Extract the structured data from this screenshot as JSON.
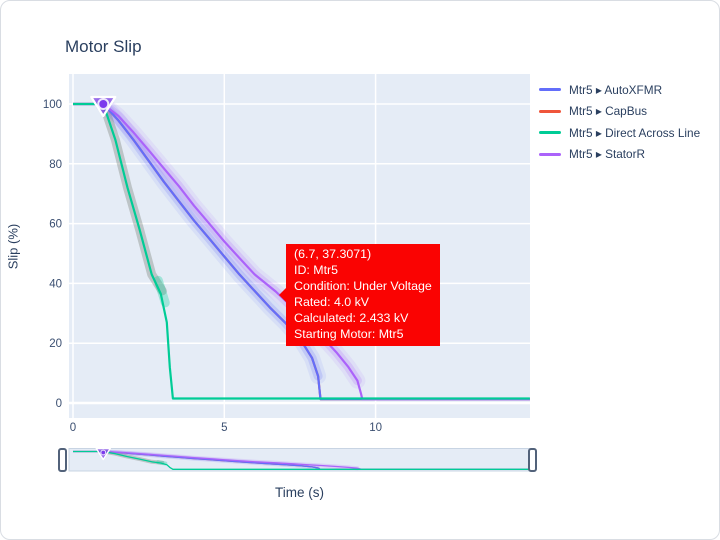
{
  "title": "Motor Slip",
  "axes": {
    "ylabel": "Slip (%)",
    "xlabel": "Time (s)"
  },
  "legend": {
    "items": [
      {
        "label": "Mtr5 ▸ AutoXFMR",
        "color": "#636efa"
      },
      {
        "label": "Mtr5 ▸ CapBus",
        "color": "#ef553b"
      },
      {
        "label": "Mtr5 ▸ Direct Across Line",
        "color": "#00cc96"
      },
      {
        "label": "Mtr5 ▸ StatorR",
        "color": "#ab63fa"
      }
    ]
  },
  "tooltip": {
    "point": "(6.7, 37.3071)",
    "id": "ID: Mtr5",
    "condition": "Condition: Under Voltage",
    "rated": "Rated: 4.0 kV",
    "calculated": "Calculated: 2.433 kV",
    "starting_motor": "Starting Motor: Mtr5",
    "bg_color": "#fa0302"
  },
  "chart_data": {
    "type": "line",
    "title": "Motor Slip",
    "xlabel": "Time (s)",
    "ylabel": "Slip (%)",
    "xlim": [
      0,
      15.1
    ],
    "ylim": [
      -5,
      110
    ],
    "xticks": [
      0,
      5,
      10
    ],
    "yticks": [
      0,
      20,
      40,
      60,
      80,
      100
    ],
    "grid": true,
    "plot_bg": "#e5ecf6",
    "grid_color": "#ffffff",
    "legend_position": "right",
    "has_rangeslider": true,
    "series": [
      {
        "name": "Mtr5 ▸ AutoXFMR",
        "color": "#636efa",
        "points": [
          [
            0,
            100
          ],
          [
            1,
            100
          ],
          [
            1.5,
            94.5
          ],
          [
            2,
            88
          ],
          [
            2.5,
            81
          ],
          [
            3,
            74
          ],
          [
            3.5,
            67.5
          ],
          [
            4,
            61
          ],
          [
            4.5,
            55
          ],
          [
            5,
            49
          ],
          [
            5.5,
            43
          ],
          [
            6,
            37.5
          ],
          [
            6.5,
            32
          ],
          [
            7,
            27
          ],
          [
            7.5,
            21.5
          ],
          [
            7.9,
            15
          ],
          [
            8.1,
            9
          ],
          [
            8.18,
            1.3
          ],
          [
            15.1,
            1.3
          ]
        ]
      },
      {
        "name": "Mtr5 ▸ CapBus",
        "color": "#ef553b",
        "points": [
          [
            0,
            100
          ],
          [
            1,
            100
          ],
          [
            1.5,
            94.5
          ],
          [
            2,
            88
          ],
          [
            2.5,
            81
          ],
          [
            3,
            74
          ],
          [
            3.5,
            67.5
          ],
          [
            4,
            61
          ],
          [
            4.5,
            55
          ],
          [
            5,
            49
          ],
          [
            5.5,
            43
          ],
          [
            6,
            37.5
          ],
          [
            6.5,
            32
          ],
          [
            7,
            27
          ],
          [
            7.5,
            21.5
          ],
          [
            7.9,
            15
          ],
          [
            8.1,
            9
          ],
          [
            8.18,
            1.3
          ],
          [
            15.1,
            1.3
          ]
        ]
      },
      {
        "name": "Mtr5 ▸ Direct Across Line",
        "color": "#00cc96",
        "points": [
          [
            0,
            100
          ],
          [
            1,
            100
          ],
          [
            1.4,
            88
          ],
          [
            1.8,
            72
          ],
          [
            2.2,
            58
          ],
          [
            2.6,
            43
          ],
          [
            2.9,
            36.5
          ],
          [
            3.1,
            27
          ],
          [
            3.2,
            12
          ],
          [
            3.3,
            1.5
          ],
          [
            15.1,
            1.5
          ]
        ]
      },
      {
        "name": "Mtr5 ▸ StatorR",
        "color": "#ab63fa",
        "points": [
          [
            0,
            100
          ],
          [
            1,
            100
          ],
          [
            1.5,
            96
          ],
          [
            2,
            90.5
          ],
          [
            2.5,
            84.5
          ],
          [
            3,
            78.5
          ],
          [
            3.5,
            72.5
          ],
          [
            4,
            66
          ],
          [
            4.5,
            60
          ],
          [
            5,
            54
          ],
          [
            5.5,
            48.5
          ],
          [
            6,
            43
          ],
          [
            6.7,
            37.3
          ],
          [
            7.2,
            32.5
          ],
          [
            7.7,
            27.5
          ],
          [
            8.2,
            22.5
          ],
          [
            8.7,
            17
          ],
          [
            9.1,
            12
          ],
          [
            9.4,
            7.5
          ],
          [
            9.52,
            3
          ],
          [
            9.56,
            1.3
          ],
          [
            15.1,
            1.3
          ]
        ]
      }
    ],
    "draw_order": [
      1,
      0,
      3,
      2
    ],
    "bands": [
      {
        "series": "Mtr5 ▸ AutoXFMR",
        "color": "rgba(99,110,250,0.20)",
        "halo": "rgba(99,110,250,0.10)",
        "points": [
          [
            1,
            100
          ],
          [
            1.5,
            94.5
          ],
          [
            2,
            88
          ],
          [
            2.5,
            81
          ],
          [
            3,
            74
          ],
          [
            3.5,
            67.5
          ],
          [
            4,
            61
          ],
          [
            4.5,
            55
          ],
          [
            5,
            49
          ],
          [
            5.5,
            43
          ],
          [
            6,
            37.5
          ],
          [
            6.5,
            32
          ],
          [
            7,
            27
          ],
          [
            7.5,
            21.5
          ],
          [
            7.9,
            15
          ],
          [
            8.1,
            9
          ]
        ]
      },
      {
        "series": "Mtr5 ▸ StatorR",
        "color": "rgba(171,99,250,0.20)",
        "halo": "rgba(171,99,250,0.10)",
        "points": [
          [
            1,
            100
          ],
          [
            1.5,
            96
          ],
          [
            2,
            90.5
          ],
          [
            2.5,
            84.5
          ],
          [
            3,
            78.5
          ],
          [
            3.5,
            72.5
          ],
          [
            4,
            66
          ],
          [
            4.5,
            60
          ],
          [
            5,
            54
          ],
          [
            5.5,
            48.5
          ],
          [
            6,
            43
          ],
          [
            6.7,
            37.3
          ],
          [
            7.2,
            32.5
          ],
          [
            7.7,
            27.5
          ],
          [
            8.2,
            22.5
          ],
          [
            8.7,
            17
          ],
          [
            9.1,
            12
          ],
          [
            9.4,
            7.5
          ]
        ]
      },
      {
        "series": "Mtr5 ▸ Direct Across Line",
        "color": "rgba(115,124,112,0.35)",
        "points": [
          [
            1,
            100
          ],
          [
            1.4,
            88
          ],
          [
            1.8,
            72
          ],
          [
            2.2,
            58
          ],
          [
            2.6,
            43
          ],
          [
            2.95,
            37.5
          ]
        ]
      },
      {
        "series": "Mtr5 ▸ Direct Across Line",
        "color": "rgba(0,204,150,0.30)",
        "points": [
          [
            2.82,
            41
          ],
          [
            3.05,
            33.5
          ]
        ]
      }
    ],
    "marker": {
      "x": 1,
      "y": 100,
      "shape": "triangle-down-circle",
      "fill": "rgba(128,70,230,0.75)",
      "dot": "#7c3aed"
    },
    "annotation_point": {
      "x": 6.7,
      "y": 37.3071,
      "series": "Mtr5 ▸ StatorR"
    }
  }
}
